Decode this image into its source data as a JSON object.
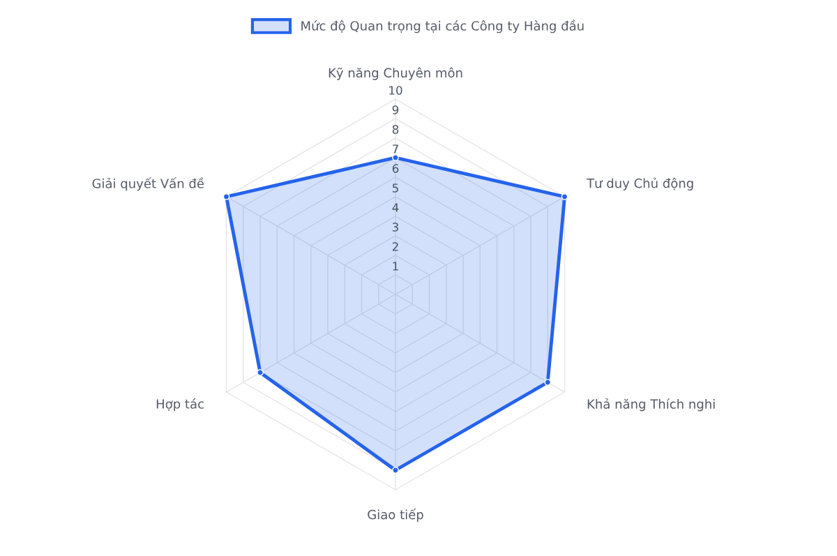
{
  "chart_data": {
    "type": "radar",
    "categories": [
      "Kỹ năng Chuyên môn",
      "Tư duy Chủ động",
      "Khả năng Thích nghi",
      "Giao tiếp",
      "Hợp tác",
      "Giải quyết Vấn đề"
    ],
    "series": [
      {
        "name": "Mức độ Quan trọng tại các Công ty Hàng đầu",
        "color": "#2563eb",
        "values": [
          7,
          10,
          9,
          9,
          8,
          10
        ]
      }
    ],
    "ylim": [
      0,
      10
    ],
    "yticks": [
      1,
      2,
      3,
      4,
      5,
      6,
      7,
      8,
      9,
      10
    ],
    "legend": "top",
    "marker": "circle",
    "grid": true
  }
}
